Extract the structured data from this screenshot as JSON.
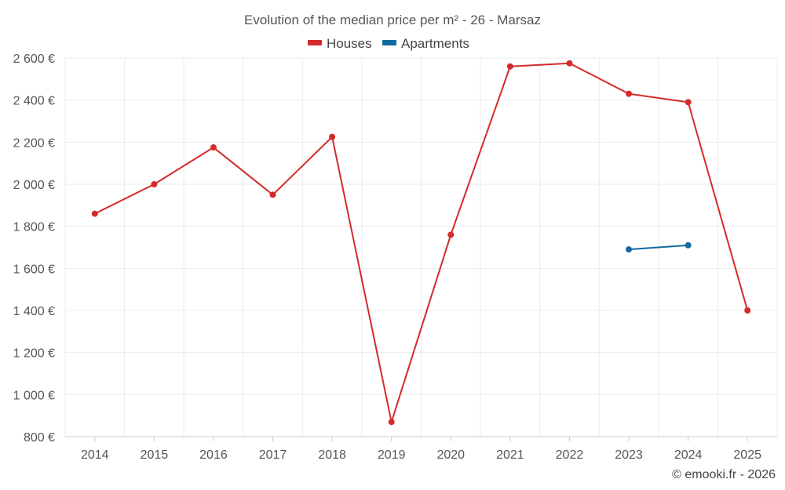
{
  "chart_data": {
    "type": "line",
    "title": "Evolution of the median price per m² - 26 - Marsaz",
    "categories": [
      "2014",
      "2015",
      "2016",
      "2017",
      "2018",
      "2019",
      "2020",
      "2021",
      "2022",
      "2023",
      "2024",
      "2025"
    ],
    "series": [
      {
        "name": "Houses",
        "color": "#d42a2a",
        "values": [
          1860,
          2000,
          2175,
          1950,
          2225,
          870,
          1760,
          2560,
          2575,
          2430,
          2390,
          1400
        ]
      },
      {
        "name": "Apartments",
        "color": "#106aa0",
        "values": [
          null,
          null,
          null,
          null,
          null,
          null,
          null,
          null,
          null,
          1690,
          1710,
          null
        ]
      }
    ],
    "ylim": [
      800,
      2600
    ],
    "yticks": [
      800,
      1000,
      1200,
      1400,
      1600,
      1800,
      2000,
      2200,
      2400,
      2600
    ],
    "ytick_labels": [
      "800 €",
      "1 000 €",
      "1 200 €",
      "1 400 €",
      "1 600 €",
      "1 800 €",
      "2 000 €",
      "2 200 €",
      "2 400 €",
      "2 600 €"
    ],
    "legend_position": "top-center",
    "grid": true,
    "credit": "© emooki.fr - 2026"
  }
}
